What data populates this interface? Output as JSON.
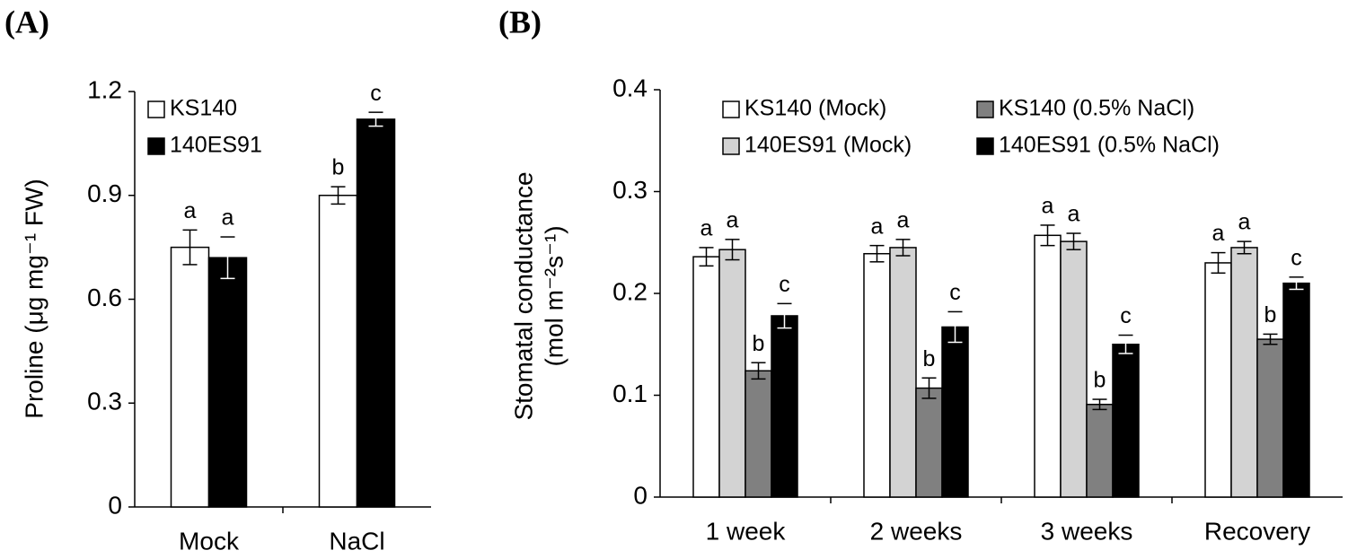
{
  "chart_data": [
    {
      "type": "bar",
      "panel_label": "(A)",
      "y_label": [
        "Proline (μg mg⁻¹ FW)"
      ],
      "categories": [
        "Mock",
        "NaCl"
      ],
      "ylim": [
        0,
        1.2
      ],
      "yticks": [
        0,
        0.3,
        0.6,
        0.9,
        1.2
      ],
      "series": [
        {
          "name": "KS140",
          "color": "#ffffff",
          "values": [
            0.75,
            0.9
          ],
          "errors": [
            0.05,
            0.025
          ],
          "letters": [
            "a",
            "b"
          ]
        },
        {
          "name": "140ES91",
          "color": "#000000",
          "values": [
            0.72,
            1.12
          ],
          "errors": [
            0.06,
            0.02
          ],
          "letters": [
            "a",
            "c"
          ]
        }
      ]
    },
    {
      "type": "bar",
      "panel_label": "(B)",
      "y_label": [
        "Stomatal conductance",
        "(mol m⁻²s⁻¹)"
      ],
      "categories": [
        "1 week",
        "2 weeks",
        "3 weeks",
        "Recovery"
      ],
      "ylim": [
        0,
        0.4
      ],
      "yticks": [
        0,
        0.1,
        0.2,
        0.3,
        0.4
      ],
      "series": [
        {
          "name": "KS140 (Mock)",
          "color": "#ffffff",
          "values": [
            0.236,
            0.239,
            0.257,
            0.23
          ],
          "errors": [
            0.009,
            0.008,
            0.01,
            0.01
          ],
          "letters": [
            "a",
            "a",
            "a",
            "a"
          ]
        },
        {
          "name": "140ES91 (Mock)",
          "color": "#d3d3d3",
          "values": [
            0.243,
            0.245,
            0.251,
            0.245
          ],
          "errors": [
            0.01,
            0.008,
            0.008,
            0.006
          ],
          "letters": [
            "a",
            "a",
            "a",
            "a"
          ]
        },
        {
          "name": "KS140 (0.5% NaCl)",
          "color": "#808080",
          "values": [
            0.124,
            0.107,
            0.091,
            0.155
          ],
          "errors": [
            0.008,
            0.01,
            0.005,
            0.005
          ],
          "letters": [
            "b",
            "b",
            "b",
            "b"
          ]
        },
        {
          "name": "140ES91 (0.5% NaCl)",
          "color": "#000000",
          "values": [
            0.178,
            0.167,
            0.15,
            0.21
          ],
          "errors": [
            0.012,
            0.015,
            0.009,
            0.006
          ],
          "letters": [
            "c",
            "c",
            "c",
            "c"
          ]
        }
      ]
    }
  ]
}
